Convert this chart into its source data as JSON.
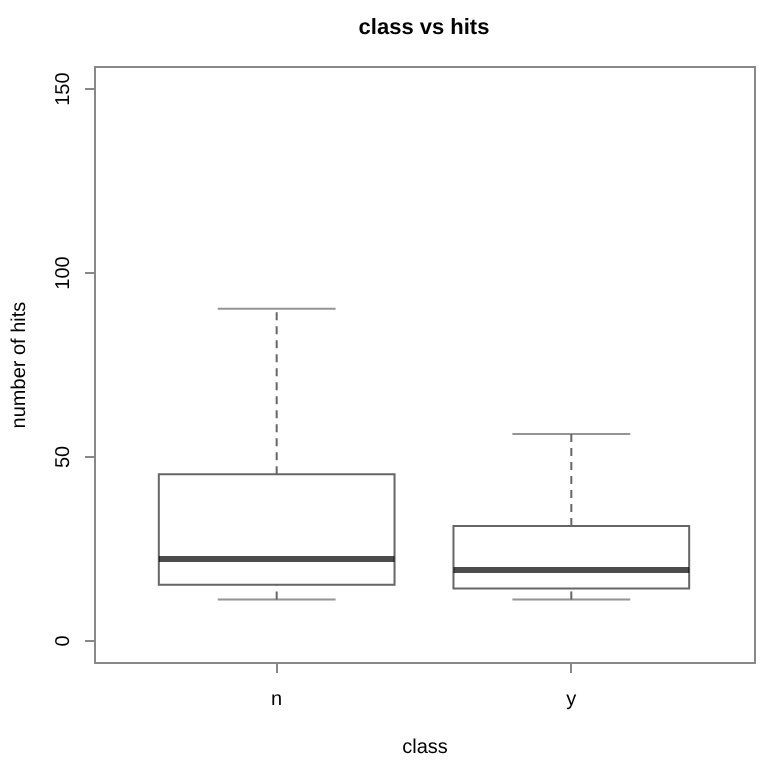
{
  "chart_data": {
    "type": "box",
    "title": "class vs hits",
    "xlabel": "class",
    "ylabel": "number of hits",
    "categories": [
      "n",
      "y"
    ],
    "boxes": [
      {
        "low": 11,
        "q1": 15,
        "median": 22,
        "q3": 45,
        "high": 90
      },
      {
        "low": 11,
        "q1": 14,
        "median": 19,
        "q3": 31,
        "high": 56
      }
    ],
    "ylim": [
      -6,
      156
    ],
    "yticks": [
      0,
      50,
      100,
      150
    ],
    "grid": false
  }
}
